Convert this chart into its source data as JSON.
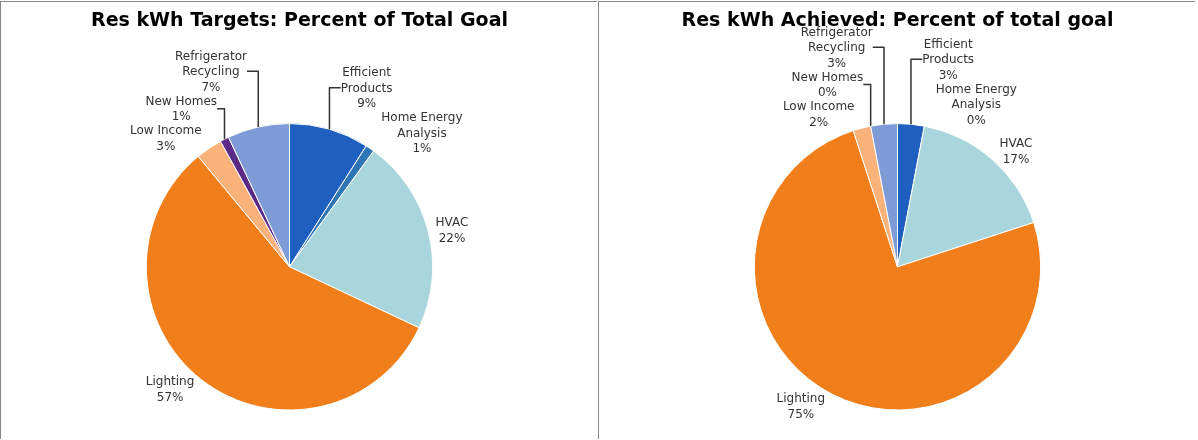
{
  "chart_data": [
    {
      "type": "pie",
      "title": "Res kWh Targets: Percent of Total Goal",
      "categories": [
        "Efficient Products",
        "Home Energy Analysis",
        "HVAC",
        "Lighting",
        "Low Income",
        "New Homes",
        "Refrigerator Recycling"
      ],
      "values": [
        9,
        1,
        22,
        57,
        3,
        1,
        7
      ],
      "value_labels": [
        "9%",
        "1%",
        "22%",
        "57%",
        "3%",
        "1%",
        "7%"
      ],
      "colors": [
        "#1f5fbf",
        "#2e75b6",
        "#a9d6dc",
        "#f07f1b",
        "#f9b27a",
        "#5b2a86",
        "#7e9bd6"
      ],
      "legend": false
    },
    {
      "type": "pie",
      "title": "Res kWh Achieved: Percent of total goal",
      "categories": [
        "Efficient Products",
        "Home Energy Analysis",
        "HVAC",
        "Lighting",
        "Low Income",
        "New Homes",
        "Refrigerator Recycling"
      ],
      "values": [
        3,
        0,
        17,
        75,
        2,
        0,
        3
      ],
      "value_labels": [
        "3%",
        "0%",
        "17%",
        "75%",
        "2%",
        "0%",
        "3%"
      ],
      "colors": [
        "#1f5fbf",
        "#2e75b6",
        "#a9d6dc",
        "#f07f1b",
        "#f9b27a",
        "#5b2a86",
        "#7e9bd6"
      ],
      "legend": false
    }
  ]
}
